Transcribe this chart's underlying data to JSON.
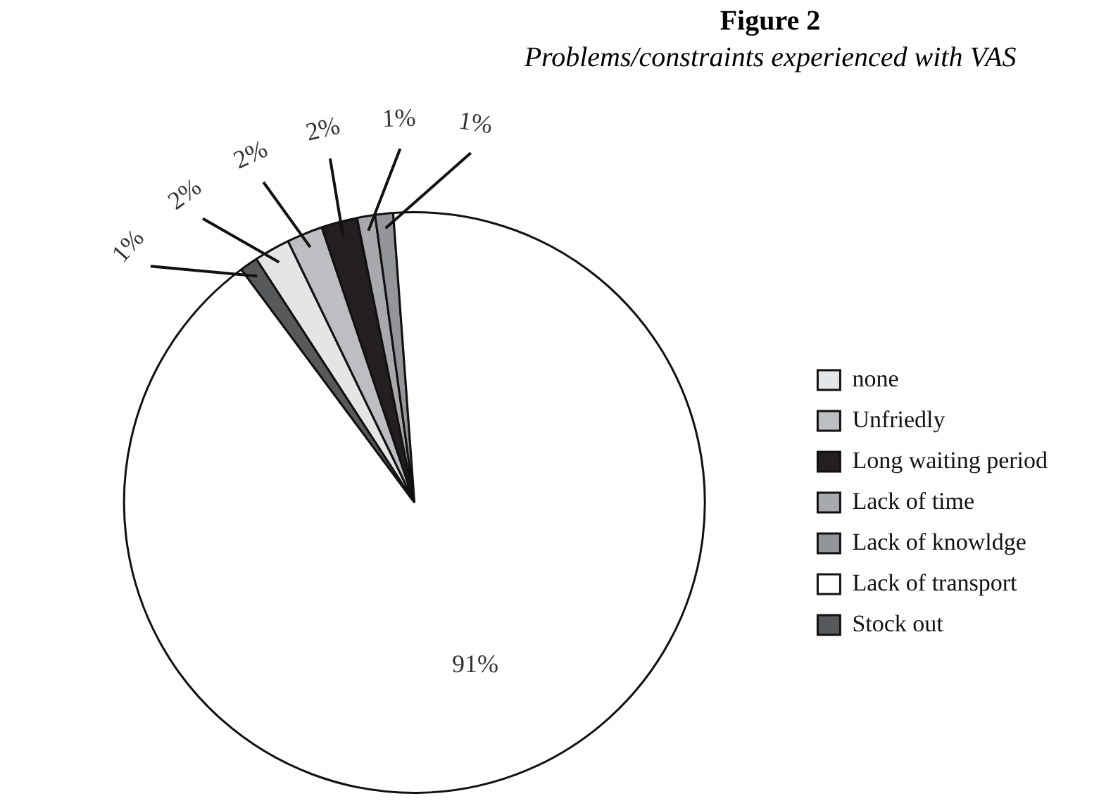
{
  "chart_data": {
    "type": "pie",
    "title": "Figure 2",
    "subtitle": "Problems/constraints experienced with VAS",
    "categories": [
      "none",
      "Unfriedly",
      "Long waiting period",
      "Lack of time",
      "Lack of knowldge",
      "Lack of transport",
      "Stock out"
    ],
    "values": [
      2,
      2,
      2,
      1,
      1,
      91,
      1
    ],
    "value_labels": [
      "2%",
      "2%",
      "2%",
      "1%",
      "1%",
      "91%",
      "1%"
    ],
    "colors": [
      "#e4e5e7",
      "#bcbec1",
      "#231f20",
      "#a7a9ac",
      "#939598",
      "#ffffff",
      "#58595b"
    ],
    "legend": "right"
  }
}
